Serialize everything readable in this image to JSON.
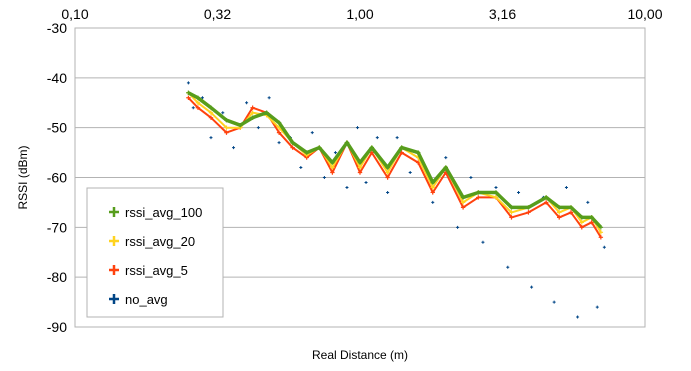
{
  "chart_data": {
    "type": "scatter",
    "title": "",
    "xlabel": "Real Distance (m)",
    "ylabel": "RSSI (dBm)",
    "x_scale": "log",
    "xlim": [
      0.1,
      10
    ],
    "ylim": [
      -90,
      -30
    ],
    "x_tick_labels": [
      "0,10",
      "0,32",
      "1,00",
      "3,16",
      "10,00"
    ],
    "x_ticks": [
      0.1,
      0.3162,
      1,
      3.162,
      10
    ],
    "y_ticks": [
      -30,
      -40,
      -50,
      -60,
      -70,
      -80,
      -90
    ],
    "y_tick_labels": [
      "-30",
      "-40",
      "-50",
      "-60",
      "-70",
      "-80",
      "-90"
    ],
    "grid": "horizontal",
    "legend_position": "bottom-left",
    "series": [
      {
        "name": "rssi_avg_100",
        "color": "#579d1c",
        "x": [
          0.25,
          0.27,
          0.3,
          0.34,
          0.38,
          0.42,
          0.47,
          0.52,
          0.58,
          0.65,
          0.72,
          0.8,
          0.9,
          1.0,
          1.1,
          1.25,
          1.4,
          1.6,
          1.8,
          2.0,
          2.3,
          2.6,
          3.0,
          3.4,
          3.9,
          4.5,
          5.0,
          5.5,
          6.0,
          6.5,
          7.0
        ],
        "y": [
          -43,
          -44,
          -46,
          -48.5,
          -49.5,
          -48,
          -47,
          -49,
          -53,
          -55,
          -54,
          -57,
          -53,
          -57,
          -54,
          -58,
          -54,
          -55,
          -61,
          -58,
          -64,
          -63,
          -63,
          -66,
          -66,
          -64,
          -66,
          -66,
          -68,
          -68,
          -70
        ]
      },
      {
        "name": "rssi_avg_20",
        "color": "#ffd320",
        "x": [
          0.25,
          0.27,
          0.3,
          0.34,
          0.38,
          0.42,
          0.47,
          0.52,
          0.58,
          0.65,
          0.72,
          0.8,
          0.9,
          1.0,
          1.1,
          1.25,
          1.4,
          1.6,
          1.8,
          2.0,
          2.3,
          2.6,
          3.0,
          3.4,
          3.9,
          4.5,
          5.0,
          5.5,
          6.0,
          6.5,
          7.0
        ],
        "y": [
          -43,
          -45,
          -47,
          -50,
          -50,
          -47,
          -47.5,
          -50,
          -53,
          -55.5,
          -54,
          -58,
          -53,
          -58,
          -54,
          -59,
          -54,
          -56,
          -62,
          -58,
          -65,
          -63,
          -64,
          -67,
          -66,
          -64,
          -67,
          -66,
          -69,
          -68,
          -71
        ]
      },
      {
        "name": "rssi_avg_5",
        "color": "#ff420e",
        "x": [
          0.25,
          0.27,
          0.3,
          0.34,
          0.38,
          0.42,
          0.47,
          0.52,
          0.58,
          0.65,
          0.72,
          0.8,
          0.9,
          1.0,
          1.1,
          1.25,
          1.4,
          1.6,
          1.8,
          2.0,
          2.3,
          2.6,
          3.0,
          3.4,
          3.9,
          4.5,
          5.0,
          5.5,
          6.0,
          6.5,
          7.0
        ],
        "y": [
          -44,
          -46,
          -48,
          -51,
          -50,
          -46,
          -47,
          -51,
          -54,
          -56,
          -54,
          -59,
          -53,
          -59,
          -55,
          -60,
          -55,
          -57,
          -63,
          -59,
          -66,
          -64,
          -64,
          -68,
          -67,
          -65,
          -68,
          -67,
          -70,
          -69,
          -72
        ]
      },
      {
        "name": "no_avg",
        "color": "#004586",
        "x": [
          0.25,
          0.26,
          0.28,
          0.3,
          0.33,
          0.36,
          0.4,
          0.44,
          0.48,
          0.52,
          0.57,
          0.62,
          0.68,
          0.75,
          0.82,
          0.9,
          0.98,
          1.05,
          1.15,
          1.25,
          1.35,
          1.5,
          1.65,
          1.8,
          2.0,
          2.2,
          2.45,
          2.7,
          3.0,
          3.3,
          3.6,
          4.0,
          4.4,
          4.8,
          5.3,
          5.8,
          6.3,
          6.8,
          7.2
        ],
        "y": [
          -41,
          -46,
          -44,
          -52,
          -47,
          -54,
          -45,
          -50,
          -44,
          -53,
          -52,
          -58,
          -51,
          -60,
          -55,
          -62,
          -50,
          -61,
          -52,
          -63,
          -52,
          -59,
          -57,
          -65,
          -56,
          -70,
          -60,
          -73,
          -62,
          -78,
          -63,
          -82,
          -64,
          -85,
          -62,
          -88,
          -65,
          -86,
          -74
        ]
      }
    ]
  }
}
